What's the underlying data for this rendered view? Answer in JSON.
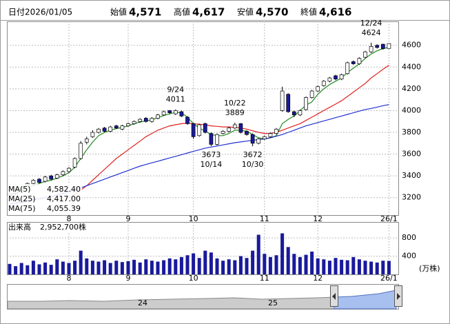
{
  "header": {
    "date_label": "日付",
    "date": "2026/01/05",
    "items": [
      {
        "label": "始値",
        "value": "4,571",
        "color": "#000000"
      },
      {
        "label": "高値",
        "value": "4,617",
        "color": "#e00000"
      },
      {
        "label": "安値",
        "value": "4,570",
        "color": "#008000"
      },
      {
        "label": "終値",
        "value": "4,616",
        "color": "#000000"
      }
    ]
  },
  "chart_data": {
    "type": "candlestick",
    "categories": [
      null,
      null,
      null,
      null,
      null,
      null,
      null,
      null,
      null,
      null,
      "8",
      null,
      null,
      null,
      null,
      null,
      null,
      null,
      null,
      null,
      "9",
      null,
      null,
      null,
      null,
      null,
      null,
      null,
      null,
      null,
      null,
      "10",
      null,
      null,
      null,
      null,
      null,
      null,
      null,
      null,
      null,
      null,
      null,
      "11",
      null,
      null,
      null,
      null,
      null,
      null,
      null,
      null,
      "12",
      null,
      null,
      null,
      null,
      null,
      null,
      null,
      null,
      null,
      null,
      null,
      "26/1"
    ],
    "open": [
      3220,
      3240,
      3280,
      3310,
      3330,
      3370,
      3350,
      3400,
      3380,
      3410,
      3440,
      3480,
      3560,
      3710,
      3760,
      3800,
      3840,
      3810,
      3860,
      3830,
      3860,
      3880,
      3900,
      3930,
      3900,
      3930,
      3960,
      4000,
      3970,
      3990,
      3940,
      3880,
      3770,
      3880,
      3790,
      3690,
      3790,
      3810,
      3840,
      3880,
      3810,
      3780,
      3700,
      3740,
      3760,
      3790,
      4000,
      4150,
      3990,
      3960,
      4010,
      4120,
      4180,
      4230,
      4270,
      4320,
      4290,
      4340,
      4450,
      4430,
      4490,
      4540,
      4600,
      4610,
      4571
    ],
    "high": [
      3250,
      3280,
      3310,
      3340,
      3370,
      3380,
      3400,
      3410,
      3420,
      3450,
      3480,
      3570,
      3720,
      3760,
      3820,
      3840,
      3850,
      3860,
      3870,
      3870,
      3890,
      3910,
      3930,
      3940,
      3940,
      3970,
      4000,
      4005,
      4011,
      4000,
      3950,
      3890,
      3880,
      3890,
      3800,
      3790,
      3820,
      3850,
      3889,
      3885,
      3820,
      3790,
      3750,
      3770,
      3800,
      3840,
      4220,
      4160,
      4000,
      4010,
      4130,
      4190,
      4230,
      4280,
      4310,
      4330,
      4340,
      4450,
      4460,
      4490,
      4550,
      4624,
      4610,
      4615,
      4617
    ],
    "low": [
      3210,
      3230,
      3270,
      3300,
      3320,
      3330,
      3340,
      3360,
      3370,
      3400,
      3430,
      3470,
      3550,
      3690,
      3750,
      3790,
      3800,
      3800,
      3830,
      3820,
      3850,
      3870,
      3890,
      3890,
      3890,
      3920,
      3950,
      3970,
      3960,
      3940,
      3870,
      3740,
      3760,
      3790,
      3673,
      3680,
      3780,
      3800,
      3830,
      3790,
      3770,
      3672,
      3690,
      3730,
      3750,
      3780,
      3990,
      3980,
      3940,
      3950,
      4000,
      4110,
      4170,
      4220,
      4260,
      4280,
      4280,
      4330,
      4420,
      4420,
      4480,
      4530,
      4570,
      4560,
      4570
    ],
    "close": [
      3240,
      3270,
      3300,
      3330,
      3360,
      3340,
      3390,
      3370,
      3410,
      3440,
      3470,
      3560,
      3700,
      3740,
      3800,
      3830,
      3810,
      3850,
      3840,
      3860,
      3880,
      3900,
      3920,
      3900,
      3930,
      3960,
      3990,
      3980,
      4000,
      3950,
      3880,
      3760,
      3870,
      3800,
      3690,
      3780,
      3810,
      3840,
      3870,
      3800,
      3780,
      3700,
      3740,
      3760,
      3790,
      3830,
      4180,
      3990,
      3960,
      4000,
      4120,
      4180,
      4220,
      4270,
      4300,
      4290,
      4330,
      4440,
      4430,
      4480,
      4540,
      4590,
      4580,
      4570,
      4616
    ],
    "up_color": "#ffffff",
    "down_color": "#1a1a9c",
    "ylim": [
      3040,
      4820
    ],
    "yticks": [
      3200,
      3400,
      3600,
      3800,
      4000,
      4200,
      4400,
      4600
    ],
    "grid": true,
    "series": [
      {
        "name": "MA(5)",
        "color": "#1f8a1f",
        "value_label": "4,582.40",
        "values": [
          3220,
          3240,
          3260,
          3290,
          3310,
          3330,
          3350,
          3360,
          3380,
          3400,
          3430,
          3480,
          3560,
          3640,
          3710,
          3770,
          3800,
          3820,
          3835,
          3845,
          3860,
          3880,
          3895,
          3905,
          3915,
          3935,
          3955,
          3970,
          3985,
          3980,
          3940,
          3880,
          3840,
          3810,
          3780,
          3770,
          3770,
          3790,
          3820,
          3820,
          3810,
          3780,
          3750,
          3740,
          3750,
          3770,
          3880,
          3920,
          3950,
          4000,
          4050,
          4080,
          4150,
          4200,
          4240,
          4270,
          4300,
          4350,
          4390,
          4430,
          4480,
          4520,
          4550,
          4570,
          4582.4
        ]
      },
      {
        "name": "MA(25)",
        "color": "#e02020",
        "value_label": "4,417.00",
        "values": [
          null,
          null,
          null,
          null,
          null,
          null,
          null,
          null,
          null,
          null,
          3200,
          3230,
          3270,
          3310,
          3360,
          3410,
          3460,
          3510,
          3560,
          3600,
          3640,
          3680,
          3720,
          3760,
          3790,
          3820,
          3840,
          3860,
          3870,
          3880,
          3885,
          3880,
          3875,
          3870,
          3860,
          3855,
          3850,
          3850,
          3845,
          3840,
          3830,
          3815,
          3800,
          3790,
          3790,
          3800,
          3820,
          3840,
          3860,
          3880,
          3910,
          3940,
          3970,
          4000,
          4030,
          4060,
          4090,
          4130,
          4170,
          4210,
          4250,
          4300,
          4340,
          4380,
          4417
        ]
      },
      {
        "name": "MA(75)",
        "color": "#2030d0",
        "value_label": "4,055.39",
        "values": [
          3140,
          3150,
          3160,
          3170,
          3180,
          3190,
          3200,
          3210,
          3225,
          3240,
          3255,
          3270,
          3290,
          3310,
          3330,
          3350,
          3370,
          3390,
          3410,
          3430,
          3450,
          3470,
          3490,
          3505,
          3520,
          3535,
          3550,
          3565,
          3580,
          3595,
          3610,
          3625,
          3640,
          3655,
          3665,
          3675,
          3685,
          3695,
          3705,
          3712,
          3720,
          3727,
          3733,
          3740,
          3750,
          3765,
          3780,
          3800,
          3820,
          3840,
          3860,
          3875,
          3890,
          3905,
          3920,
          3935,
          3950,
          3965,
          3980,
          3995,
          4010,
          4020,
          4032,
          4045,
          4055.39
        ]
      }
    ],
    "annotations": [
      {
        "label": "9/24",
        "value": 4011
      },
      {
        "label": "10/22",
        "value": 3889
      },
      {
        "label": "10/14",
        "value": 3673
      },
      {
        "label": "10/30",
        "value": 3672
      },
      {
        "label": "12/24",
        "value": 4624
      }
    ],
    "volume": {
      "title": "出来高",
      "total_label": "2,952,700株",
      "unit": "(万株)",
      "color": "#1a1a9c",
      "ylim": [
        0,
        1150
      ],
      "yticks": [
        400,
        800
      ],
      "values": [
        230,
        180,
        250,
        200,
        300,
        220,
        260,
        210,
        330,
        280,
        250,
        300,
        520,
        350,
        300,
        280,
        310,
        250,
        300,
        270,
        290,
        320,
        260,
        330,
        300,
        280,
        310,
        350,
        330,
        380,
        420,
        460,
        360,
        520,
        480,
        350,
        300,
        330,
        310,
        400,
        360,
        520,
        870,
        450,
        380,
        420,
        900,
        600,
        450,
        380,
        430,
        500,
        350,
        330,
        300,
        360,
        320,
        310,
        380,
        330,
        300,
        280,
        260,
        300,
        295.27
      ]
    }
  },
  "navigator": {
    "labels": [
      "24",
      "25"
    ]
  }
}
